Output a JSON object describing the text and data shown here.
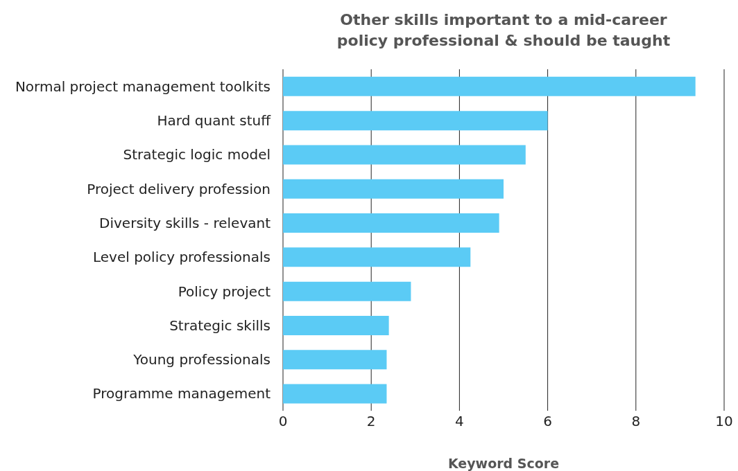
{
  "chart_data": {
    "type": "bar",
    "orientation": "horizontal",
    "title": "Other skills important to a mid-career\npolicy professional & should be taught",
    "xlabel": "Keyword Score",
    "categories": [
      "Normal project management toolkits",
      "Hard quant stuff",
      "Strategic logic model",
      "Project delivery profession",
      "Diversity skills - relevant",
      "Level policy professionals",
      "Policy project",
      "Strategic skills",
      "Young professionals",
      "Programme management"
    ],
    "values": [
      9.35,
      6.0,
      5.5,
      5.0,
      4.9,
      4.25,
      2.9,
      2.4,
      2.35,
      2.35
    ],
    "color": "#5bcbf5",
    "xlim": [
      0,
      10
    ],
    "xticks": [
      0,
      2,
      4,
      6,
      8,
      10
    ],
    "grid": "x"
  }
}
